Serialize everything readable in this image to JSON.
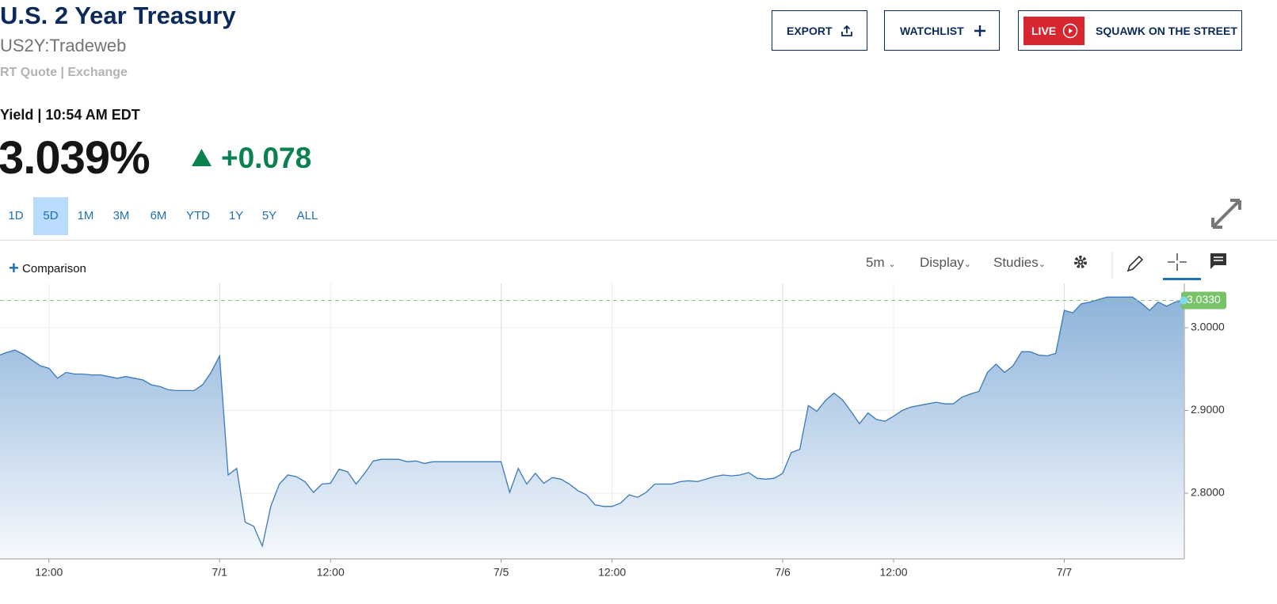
{
  "header": {
    "title": "U.S. 2 Year Treasury",
    "symbol": "US2Y:Tradeweb",
    "quote_type": "RT Quote | Exchange",
    "buttons": {
      "export": "EXPORT",
      "watchlist": "WATCHLIST",
      "live": "LIVE",
      "show": "SQUAWK ON THE STREET"
    }
  },
  "quote": {
    "label": "Yield | 10:54 AM EDT",
    "price": "3.039%",
    "change": "+0.078"
  },
  "range_tabs": {
    "items": [
      "1D",
      "5D",
      "1M",
      "3M",
      "6M",
      "YTD",
      "1Y",
      "5Y",
      "ALL"
    ],
    "selected": 1
  },
  "toolbar": {
    "comparison": "Comparison",
    "interval": "5m",
    "display": "Display",
    "studies": "Studies"
  },
  "chart_data": {
    "type": "line",
    "color": "#3a7ab8",
    "grid": true,
    "categories": [
      null,
      null,
      null,
      null,
      null,
      null,
      "12:00",
      null,
      null,
      null,
      null,
      null,
      null,
      null,
      null,
      null,
      null,
      null,
      null,
      null,
      null,
      null,
      null,
      null,
      null,
      null,
      "7/1",
      null,
      null,
      null,
      null,
      null,
      null,
      null,
      null,
      null,
      null,
      null,
      null,
      "12:00",
      null,
      null,
      null,
      null,
      null,
      null,
      null,
      null,
      null,
      null,
      null,
      null,
      null,
      null,
      null,
      null,
      null,
      null,
      null,
      "7/5",
      null,
      null,
      null,
      null,
      null,
      null,
      null,
      null,
      null,
      null,
      null,
      null,
      "12:00",
      null,
      null,
      null,
      null,
      null,
      null,
      null,
      null,
      null,
      null,
      null,
      null,
      null,
      null,
      null,
      null,
      null,
      null,
      null,
      "7/6",
      null,
      null,
      null,
      null,
      null,
      null,
      null,
      null,
      null,
      null,
      null,
      null,
      "12:00",
      null,
      null,
      null,
      null,
      null,
      null,
      null,
      null,
      null,
      null,
      null,
      null,
      null,
      null,
      null,
      null,
      null,
      null,
      null,
      "7/7",
      null,
      null,
      null,
      null,
      null,
      null,
      null,
      null,
      null,
      null,
      null,
      null,
      null,
      null
    ],
    "values": [
      2.966,
      2.97,
      2.973,
      2.968,
      2.961,
      2.954,
      2.951,
      2.939,
      2.946,
      2.944,
      2.944,
      2.943,
      2.943,
      2.941,
      2.939,
      2.941,
      2.939,
      2.937,
      2.931,
      2.929,
      2.925,
      2.924,
      2.924,
      2.924,
      2.931,
      2.946,
      2.966,
      2.822,
      2.83,
      2.765,
      2.76,
      2.736,
      2.784,
      2.811,
      2.822,
      2.82,
      2.814,
      2.801,
      2.811,
      2.812,
      2.829,
      2.826,
      2.811,
      2.824,
      2.839,
      2.841,
      2.841,
      2.841,
      2.838,
      2.839,
      2.836,
      2.838,
      2.838,
      2.838,
      2.838,
      2.838,
      2.838,
      2.838,
      2.838,
      2.838,
      2.801,
      2.83,
      2.811,
      2.824,
      2.812,
      2.819,
      2.817,
      2.811,
      2.803,
      2.798,
      2.786,
      2.784,
      2.784,
      2.788,
      2.798,
      2.795,
      2.801,
      2.811,
      2.811,
      2.811,
      2.814,
      2.815,
      2.814,
      2.817,
      2.82,
      2.822,
      2.821,
      2.822,
      2.825,
      2.818,
      2.817,
      2.818,
      2.824,
      2.849,
      2.853,
      2.906,
      2.899,
      2.912,
      2.921,
      2.913,
      2.899,
      2.884,
      2.897,
      2.889,
      2.887,
      2.893,
      2.9,
      2.904,
      2.906,
      2.908,
      2.91,
      2.908,
      2.908,
      2.916,
      2.92,
      2.923,
      2.946,
      2.956,
      2.946,
      2.954,
      2.971,
      2.971,
      2.967,
      2.966,
      2.969,
      3.021,
      3.018,
      3.029,
      3.031,
      3.034,
      3.037,
      3.037,
      3.037,
      3.037,
      3.03,
      3.021,
      3.031,
      3.026,
      3.031,
      3.033
    ],
    "ylim": [
      2.7206,
      3.0536
    ],
    "yticks": [
      {
        "value": 2.8,
        "label": "2.8000"
      },
      {
        "value": 2.9,
        "label": "2.9000"
      },
      {
        "value": 3,
        "label": "3.0000"
      }
    ],
    "last_value": {
      "value": 3.033,
      "label": "3.0330"
    }
  }
}
